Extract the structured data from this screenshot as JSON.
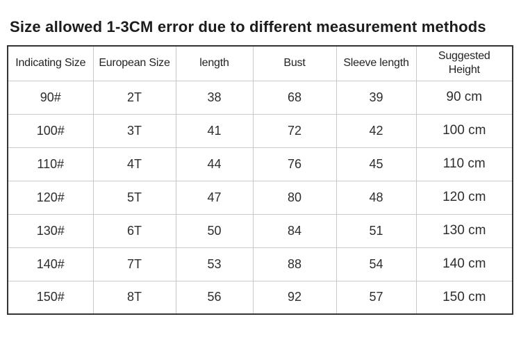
{
  "title": "Size allowed 1-3CM error due to different measurement methods",
  "chart_data": {
    "type": "table",
    "title": "Size allowed 1-3CM error due to different measurement methods",
    "columns": [
      "Indicating Size",
      "European Size",
      "length",
      "Bust",
      "Sleeve length",
      "Suggested Height"
    ],
    "rows": [
      [
        "90#",
        "2T",
        "38",
        "68",
        "39",
        "90 cm"
      ],
      [
        "100#",
        "3T",
        "41",
        "72",
        "42",
        "100 cm"
      ],
      [
        "110#",
        "4T",
        "44",
        "76",
        "45",
        "110 cm"
      ],
      [
        "120#",
        "5T",
        "47",
        "80",
        "48",
        "120 cm"
      ],
      [
        "130#",
        "6T",
        "50",
        "84",
        "51",
        "130 cm"
      ],
      [
        "140#",
        "7T",
        "53",
        "88",
        "54",
        "140 cm"
      ],
      [
        "150#",
        "8T",
        "56",
        "92",
        "57",
        "150 cm"
      ]
    ]
  },
  "colors": {
    "background": "#ffffff",
    "text": "#222222",
    "outer_border": "#333333",
    "inner_border": "#c8c8c8"
  }
}
